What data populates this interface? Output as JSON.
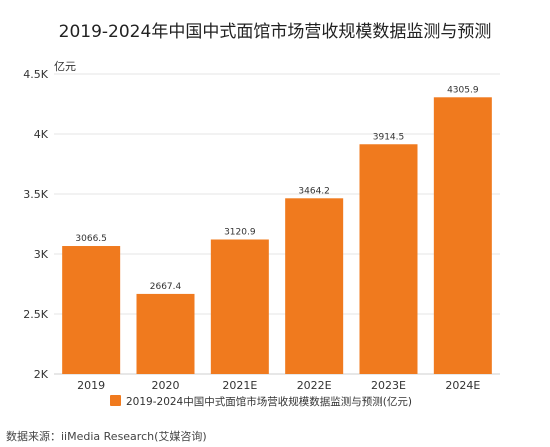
{
  "chart_data": {
    "type": "bar",
    "title": "2019-2024年中国中式面馆市场营收规模数据监测与预测",
    "unit_label": "亿元",
    "categories": [
      "2019",
      "2020",
      "2021E",
      "2022E",
      "2023E",
      "2024E"
    ],
    "series": [
      {
        "name": "2019-2024中国中式面馆市场营收规模数据监测与预测(亿元)",
        "values": [
          3066.5,
          2667.4,
          3120.9,
          3464.2,
          3914.5,
          4305.9
        ],
        "value_labels": [
          "3066.5",
          "2667.4",
          "3120.9",
          "3464.2",
          "3914.5",
          "4305.9"
        ]
      }
    ],
    "ylim": [
      2000,
      4500
    ],
    "yticks": [
      2000,
      2500,
      3000,
      3500,
      4000,
      4500
    ],
    "ytick_labels": [
      "2K",
      "2.5K",
      "3K",
      "3.5K",
      "4K",
      "4.5K"
    ],
    "grid": true,
    "legend_position": "bottom",
    "bar_color": "#F07A1E",
    "source": "数据来源：iiMedia Research(艾媒咨询)"
  }
}
